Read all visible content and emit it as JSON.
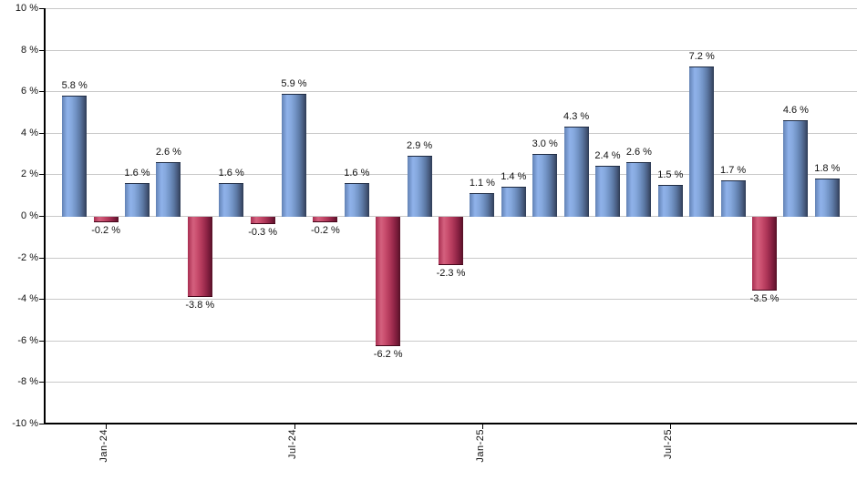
{
  "chart_data": {
    "type": "bar",
    "title": "",
    "xlabel": "",
    "ylabel": "",
    "grid": true,
    "legend": null,
    "ylim": [
      -10,
      10
    ],
    "y_tick_step": 2,
    "y_ticks": [
      {
        "value": 10,
        "label": "10 %"
      },
      {
        "value": 8,
        "label": "8 %"
      },
      {
        "value": 6,
        "label": "6 %"
      },
      {
        "value": 4,
        "label": "4 %"
      },
      {
        "value": 2,
        "label": "2 %"
      },
      {
        "value": 0,
        "label": "0 %"
      },
      {
        "value": -2,
        "label": "-2 %"
      },
      {
        "value": -4,
        "label": "-4 %"
      },
      {
        "value": -6,
        "label": "-6 %"
      },
      {
        "value": -8,
        "label": "-8 %"
      },
      {
        "value": -10,
        "label": "-10 %"
      }
    ],
    "bar_count": 25,
    "values": [
      5.8,
      -0.2,
      1.6,
      2.6,
      -3.8,
      1.6,
      -0.3,
      5.9,
      -0.2,
      1.6,
      -6.2,
      2.9,
      -2.3,
      1.1,
      1.4,
      3.0,
      4.3,
      2.4,
      2.6,
      1.5,
      7.2,
      1.7,
      -3.5,
      4.6,
      1.8
    ],
    "value_label_format": "{v} %",
    "x_ticks": [
      {
        "bar_index": 1,
        "label": "Jan-24"
      },
      {
        "bar_index": 7,
        "label": "Jul-24"
      },
      {
        "bar_index": 13,
        "label": "Jan-25"
      },
      {
        "bar_index": 19,
        "label": "Jul-25"
      }
    ],
    "colors": {
      "positive_bar": "#7fa3d8",
      "negative_bar": "#c34a69",
      "gridline": "#c9c9c9",
      "axis": "#000000",
      "label_text": "#111111",
      "background": "#ffffff"
    }
  }
}
